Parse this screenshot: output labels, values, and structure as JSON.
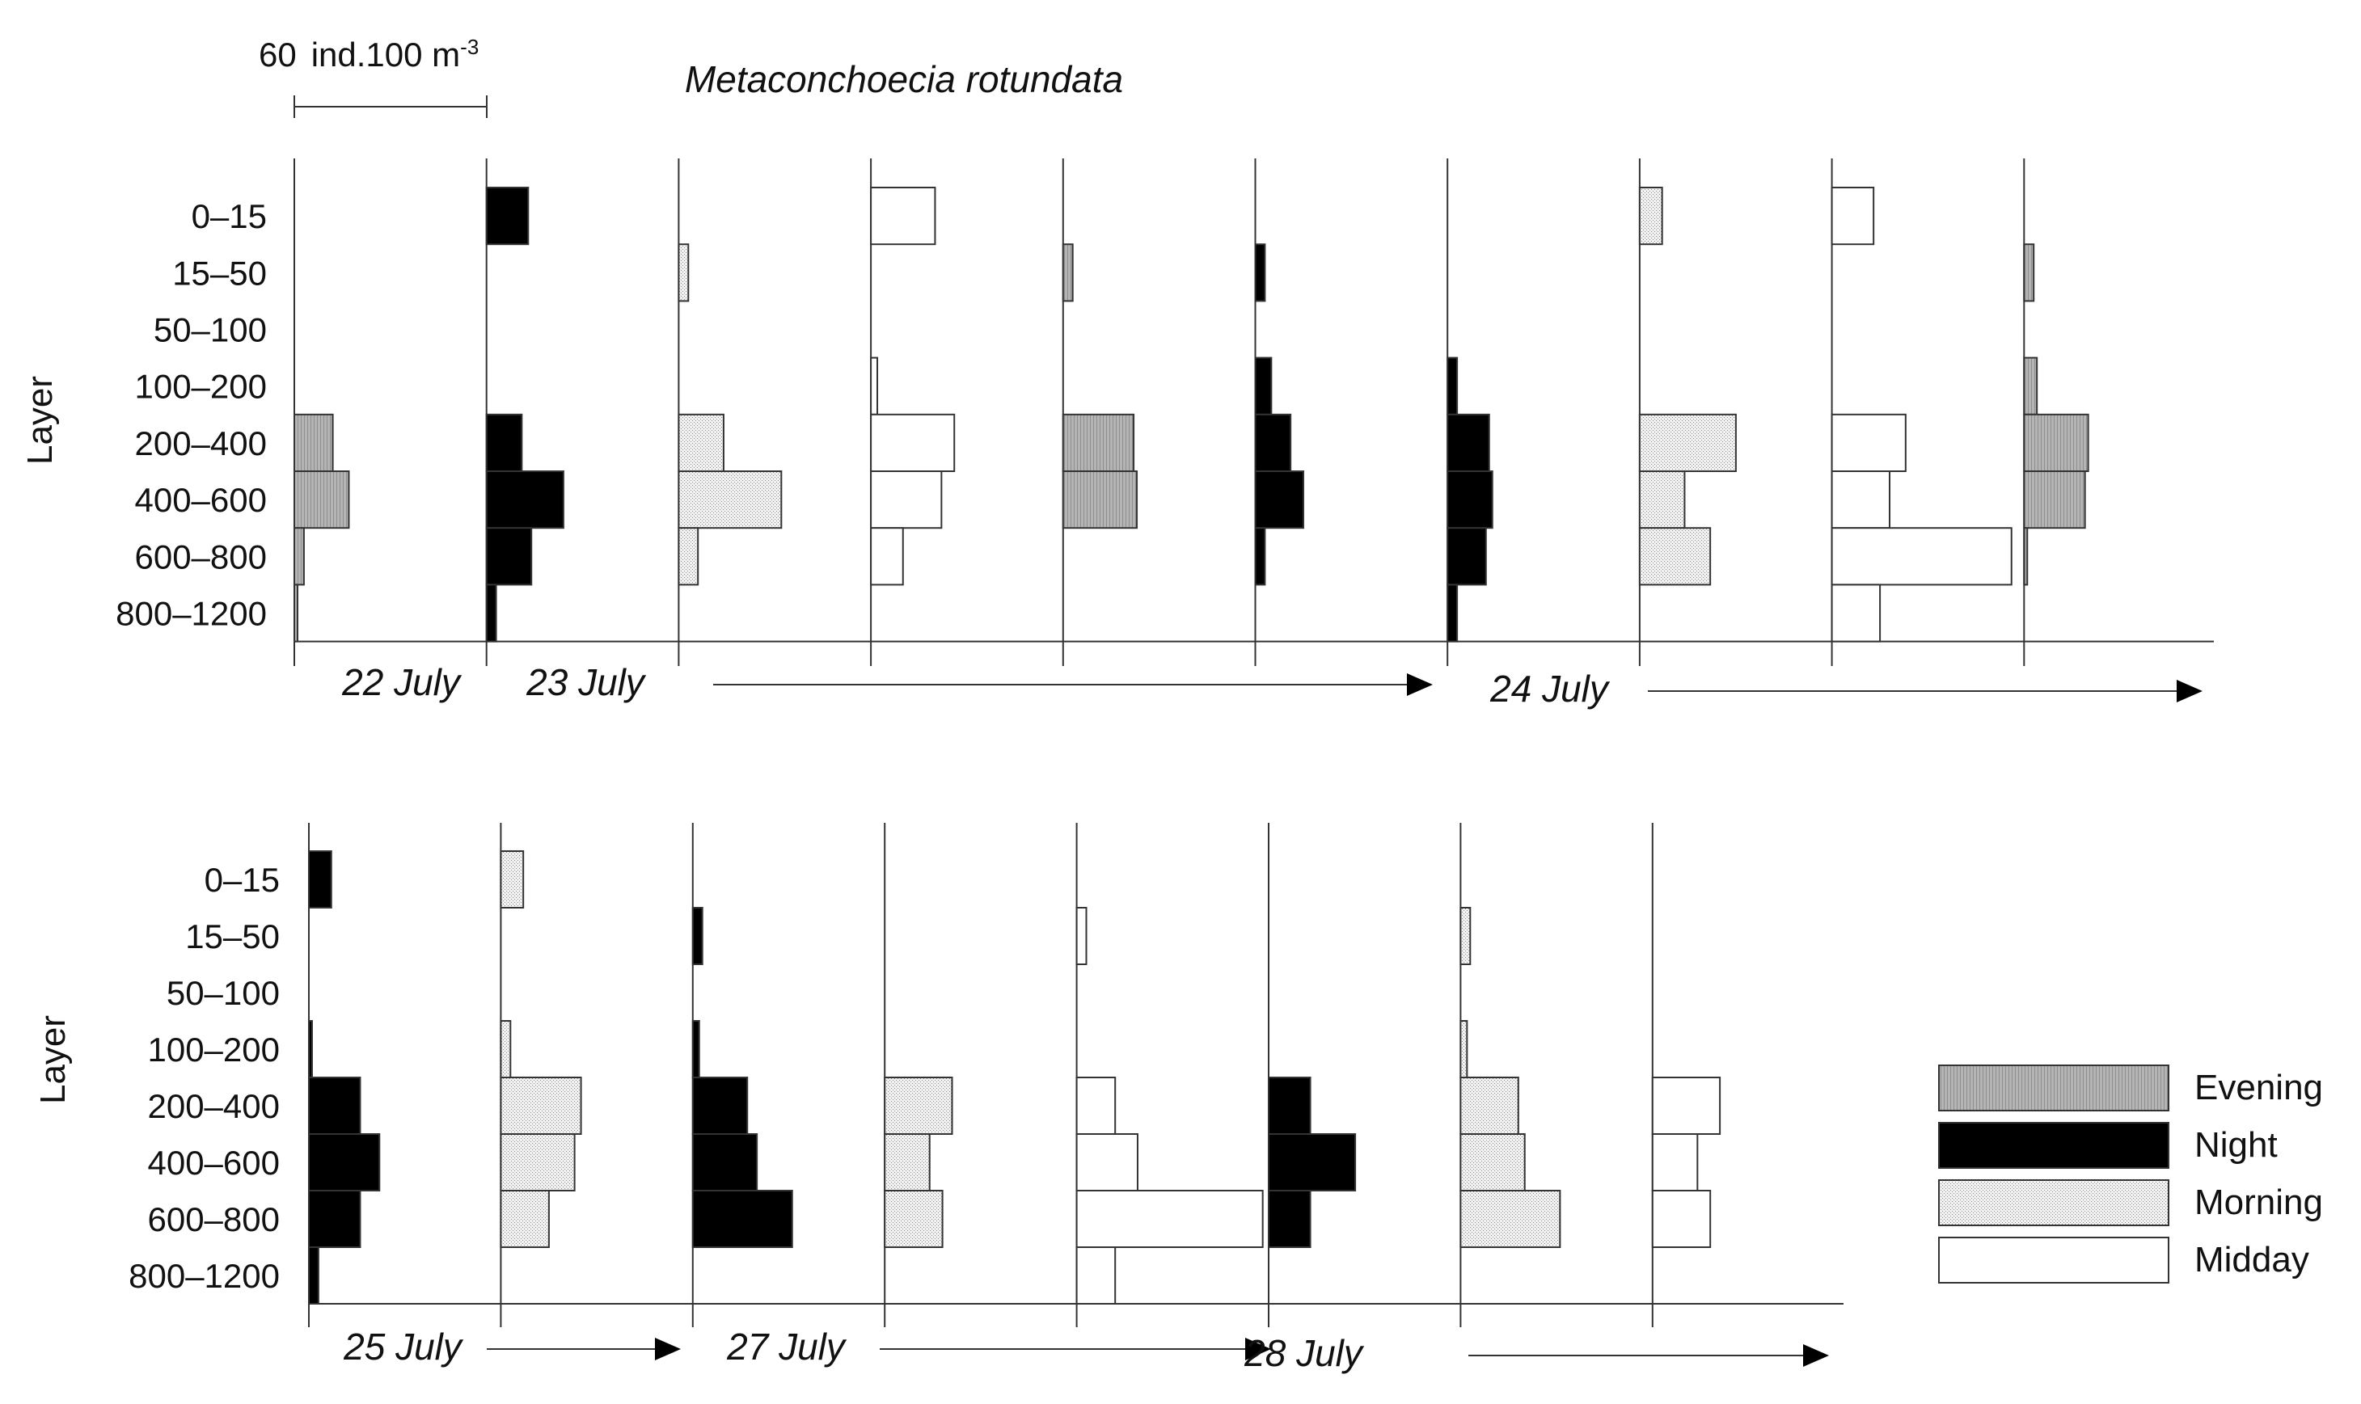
{
  "chart_data": {
    "type": "bar",
    "subtype": "kite-diagram (horizontal bars per depth layer)",
    "title": "Metaconchoecia rotundata",
    "ylabel": "Layer",
    "scale_bar": {
      "value": 60,
      "unit_prefix": "ind.100 m",
      "unit_sup": "-3"
    },
    "layers": [
      "0–15",
      "15–50",
      "50–100",
      "100–200",
      "200–400",
      "400–600",
      "600–800",
      "800–1200"
    ],
    "legend": [
      {
        "key": "evening",
        "label": "Evening"
      },
      {
        "key": "night",
        "label": "Night"
      },
      {
        "key": "morning",
        "label": "Morning"
      },
      {
        "key": "midday",
        "label": "Midday"
      }
    ],
    "colors": {
      "evening": "#b0b0b0",
      "night": "#000000",
      "morning": "#ececec",
      "midday": "#ffffff"
    },
    "panels": [
      {
        "profiles": [
          {
            "period": "evening",
            "values": [
              0,
              0,
              0,
              0,
              12,
              17,
              3,
              1
            ]
          },
          {
            "period": "night",
            "values": [
              13,
              0,
              0,
              0,
              11,
              24,
              14,
              3
            ]
          },
          {
            "period": "morning",
            "values": [
              0,
              3,
              0,
              0,
              14,
              32,
              6,
              0
            ]
          },
          {
            "period": "midday",
            "values": [
              20,
              0,
              0,
              2,
              26,
              22,
              10,
              0
            ]
          },
          {
            "period": "evening",
            "values": [
              0,
              3,
              0,
              0,
              22,
              23,
              0,
              0
            ]
          },
          {
            "period": "night",
            "values": [
              0,
              3,
              0,
              5,
              11,
              15,
              3,
              0
            ]
          },
          {
            "period": "night",
            "values": [
              0,
              0,
              0,
              3,
              13,
              14,
              12,
              3
            ]
          },
          {
            "period": "morning",
            "values": [
              7,
              0,
              0,
              0,
              30,
              14,
              22,
              0
            ]
          },
          {
            "period": "midday",
            "values": [
              13,
              0,
              0,
              0,
              23,
              18,
              56,
              15
            ]
          },
          {
            "period": "evening",
            "values": [
              0,
              3,
              0,
              4,
              20,
              19,
              1,
              0
            ]
          }
        ],
        "date_labels": [
          {
            "text": "22 July",
            "arrow": false
          },
          {
            "text": "23 July",
            "arrow": true
          },
          {
            "text": "24 July",
            "arrow": true
          }
        ]
      },
      {
        "profiles": [
          {
            "period": "night",
            "values": [
              7,
              0,
              0,
              1,
              16,
              22,
              16,
              3
            ]
          },
          {
            "period": "morning",
            "values": [
              7,
              0,
              0,
              3,
              25,
              23,
              15,
              0
            ]
          },
          {
            "period": "night",
            "values": [
              0,
              3,
              0,
              2,
              17,
              20,
              31,
              0
            ]
          },
          {
            "period": "morning",
            "values": [
              0,
              0,
              0,
              0,
              21,
              14,
              18,
              0
            ]
          },
          {
            "period": "midday",
            "values": [
              0,
              3,
              0,
              0,
              12,
              19,
              58,
              12
            ]
          },
          {
            "period": "night",
            "values": [
              0,
              0,
              0,
              0,
              13,
              27,
              13,
              0
            ]
          },
          {
            "period": "morning",
            "values": [
              0,
              3,
              0,
              2,
              18,
              20,
              31,
              0
            ]
          },
          {
            "period": "midday",
            "values": [
              0,
              0,
              0,
              0,
              21,
              14,
              18,
              0
            ]
          }
        ],
        "date_labels": [
          {
            "text": "25 July",
            "arrow": true
          },
          {
            "text": "27 July",
            "arrow": true
          },
          {
            "text": "28 July",
            "arrow": true
          }
        ]
      }
    ]
  }
}
